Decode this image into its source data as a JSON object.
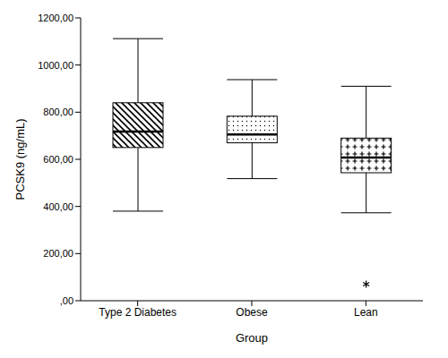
{
  "chart_data": {
    "type": "box",
    "x_label": "Group",
    "y_label": "PCSK9 (ng/mL)",
    "categories": [
      "Type 2 Diabetes",
      "Obese",
      "Lean"
    ],
    "min": [
      380,
      518,
      373
    ],
    "q1": [
      650,
      670,
      543
    ],
    "median": [
      718,
      705,
      608
    ],
    "q3": [
      840,
      783,
      690
    ],
    "max": [
      1112,
      938,
      910
    ],
    "outliers": [
      [],
      [],
      [
        70
      ]
    ],
    "ylim": [
      0,
      1200
    ],
    "yticks": [
      {
        "value": 0,
        "label": ",00"
      },
      {
        "value": 200,
        "label": "200,00"
      },
      {
        "value": 400,
        "label": "400,00"
      },
      {
        "value": 600,
        "label": "600,00"
      },
      {
        "value": 800,
        "label": "800,00"
      },
      {
        "value": 1000,
        "label": "1000,00"
      },
      {
        "value": 1200,
        "label": "1200,00"
      }
    ],
    "grid": false,
    "color": "#000000",
    "marker": "asterisk"
  }
}
